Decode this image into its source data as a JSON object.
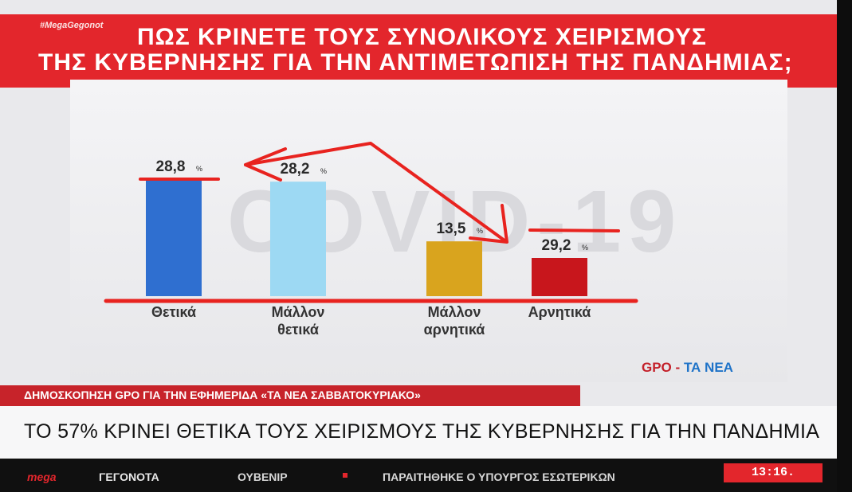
{
  "hashtag": "#MegaGegonot",
  "title_line1": "ΠΩΣ ΚΡΙΝΕΤΕ ΤΟΥΣ ΣΥΝΟΛΙΚΟΥΣ ΧΕΙΡΙΣΜΟΥΣ",
  "title_line2": "ΤΗΣ ΚΥΒΕΡΝΗΣΗΣ ΓΙΑ ΤΗΝ ΑΝΤΙΜΕΤΩΠΙΣΗ ΤΗΣ ΠΑΝΔΗΜΙΑΣ;",
  "watermark": "COVID-19",
  "source": {
    "gpo": "GPO",
    "dash": "-",
    "nea": "ΤΑ ΝΕΑ"
  },
  "poll_caption": "ΔΗΜΟΣΚΟΠΗΣΗ GPO ΓΙΑ ΤΗΝ ΕΦΗΜΕΡΙΔΑ «ΤΑ ΝΕΑ ΣΑΒΒΑΤΟΚΥΡΙΑΚΟ»",
  "headline": "ΤΟ 57% ΚΡΙΝΕΙ ΘΕΤΙΚΑ ΤΟΥΣ ΧΕΙΡΙΣΜΟΥΣ ΤΗΣ ΚΥΒΕΡΝΗΣΗΣ ΓΙΑ ΤΗΝ ΠΑΝΔΗΜΙΑ",
  "ticker": {
    "brand": "mega",
    "brand2": "ΓΕΓΟΝΟΤΑ",
    "item1": "ΟΥΒΕΝΙΡ",
    "item2": "ΠΑΡΑΙΤΗΘΗΚΕ Ο ΥΠΟΥΡΓΟΣ ΕΣΩΤΕΡΙΚΩΝ",
    "clock": "13:16."
  },
  "colors": {
    "red_band": "#e3262c",
    "annotation": "#e8231f"
  },
  "chart_data": {
    "type": "bar",
    "categories": [
      [
        "Θετικά"
      ],
      [
        "Μάλλον",
        "θετικά"
      ],
      [
        "Μάλλον",
        "αρνητικά"
      ],
      [
        "Αρνητικά"
      ]
    ],
    "values": [
      28.8,
      28.2,
      13.5,
      29.2
    ],
    "value_labels": [
      "28,8",
      "28,2",
      "13,5",
      "29,2"
    ],
    "unit": "%",
    "colors": [
      "#2f6fd0",
      "#9dd9f3",
      "#d9a41e",
      "#c8161c"
    ],
    "ylim": [
      0,
      30
    ],
    "bar_bottom_display_y": 378,
    "annotations": "red hand-drawn lines and arrow overlay"
  }
}
